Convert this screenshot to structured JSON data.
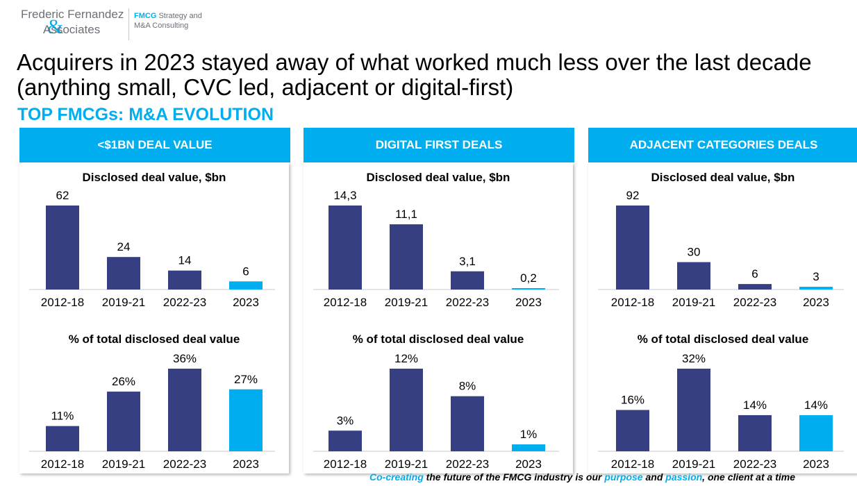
{
  "logo": {
    "line1": "Frederic Fernandez",
    "line2": "Associates",
    "amp": "&",
    "tag_line1_strong": "FMCG",
    "tag_line1_rest": " Strategy and",
    "tag_line2": "M&A Consulting"
  },
  "title": "Acquirers in 2023 stayed away of what worked much less over the last decade (anything small, CVC led, adjacent or digital-first)",
  "subtitle": "TOP FMCGs: M&A EVOLUTION",
  "colors": {
    "bar_dark": "#363f82",
    "bar_highlight": "#00aeef",
    "header_bg": "#00aeef"
  },
  "columns": [
    {
      "header": "<$1BN DEAL VALUE"
    },
    {
      "header": "DIGITAL FIRST DEALS"
    },
    {
      "header": "ADJACENT CATEGORIES DEALS"
    }
  ],
  "chart_data": [
    {
      "type": "bar",
      "title": "Disclosed deal value, $bn",
      "categories": [
        "2012-18",
        "2019-21",
        "2022-23",
        "2023"
      ],
      "values": [
        62,
        24,
        14,
        6
      ],
      "labels": [
        "62",
        "24",
        "14",
        "6"
      ],
      "highlight_index": 3
    },
    {
      "type": "bar",
      "title": "% of total disclosed deal value",
      "categories": [
        "2012-18",
        "2019-21",
        "2022-23",
        "2023"
      ],
      "values": [
        11,
        26,
        36,
        27
      ],
      "labels": [
        "11%",
        "26%",
        "36%",
        "27%"
      ],
      "highlight_index": 3
    },
    {
      "type": "bar",
      "title": "Disclosed deal value, $bn",
      "categories": [
        "2012-18",
        "2019-21",
        "2022-23",
        "2023"
      ],
      "values": [
        14.3,
        11.1,
        3.1,
        0.2
      ],
      "labels": [
        "14,3",
        "11,1",
        "3,1",
        "0,2"
      ],
      "highlight_index": 3
    },
    {
      "type": "bar",
      "title": "% of total disclosed deal value",
      "categories": [
        "2012-18",
        "2019-21",
        "2022-23",
        "2023"
      ],
      "values": [
        3,
        12,
        8,
        1
      ],
      "labels": [
        "3%",
        "12%",
        "8%",
        "1%"
      ],
      "highlight_index": 3
    },
    {
      "type": "bar",
      "title": "Disclosed deal value, $bn",
      "categories": [
        "2012-18",
        "2019-21",
        "2022-23",
        "2023"
      ],
      "values": [
        92,
        30,
        6,
        3
      ],
      "labels": [
        "92",
        "30",
        "6",
        "3"
      ],
      "highlight_index": 3
    },
    {
      "type": "bar",
      "title": "% of total disclosed deal value",
      "categories": [
        "2012-18",
        "2019-21",
        "2022-23",
        "2023"
      ],
      "values": [
        16,
        32,
        14,
        14
      ],
      "labels": [
        "16%",
        "32%",
        "14%",
        "14%"
      ],
      "highlight_index": 3
    }
  ],
  "footer": {
    "p1": "Co-creating",
    "p2": " the future of the FMCG industry is our ",
    "p3": "purpose",
    "p4": " and ",
    "p5": "passion",
    "p6": ", one client at a time"
  }
}
